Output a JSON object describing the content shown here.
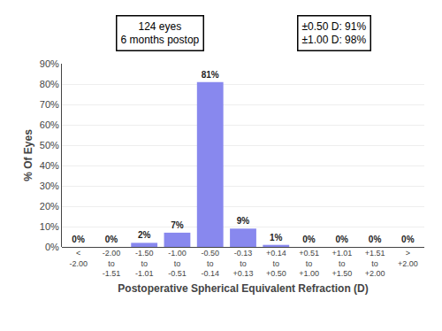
{
  "chart_data": {
    "type": "bar",
    "categories": [
      "<\n-2.00",
      "-2.00\nto\n-1.51",
      "-1.50\nto\n-1.01",
      "-1.00\nto\n-0.51",
      "-0.50\nto\n-0.14",
      "-0.13\nto\n+0.13",
      "+0.14\nto\n+0.50",
      "+0.51\nto\n+1.00",
      "+1.01\nto\n+1.50",
      "+1.51\nto\n+2.00",
      ">\n+2.00"
    ],
    "values": [
      0,
      0,
      2,
      7,
      81,
      9,
      1,
      0,
      0,
      0,
      0
    ],
    "value_labels": [
      "0%",
      "0%",
      "2%",
      "7%",
      "81%",
      "9%",
      "1%",
      "0%",
      "0%",
      "0%",
      "0%"
    ],
    "data_labels": true,
    "color": "#8888ee",
    "ylabel": "% Of Eyes",
    "xlabel": "Postoperative Spherical Equivalent Refraction (D)",
    "ylim": [
      0,
      90
    ],
    "yticks": [
      {
        "value": 0,
        "label": "0%"
      },
      {
        "value": 10,
        "label": "10%"
      },
      {
        "value": 20,
        "label": "20%"
      },
      {
        "value": 30,
        "label": "30%"
      },
      {
        "value": 40,
        "label": "40%"
      },
      {
        "value": 50,
        "label": "50%"
      },
      {
        "value": 60,
        "label": "60%"
      },
      {
        "value": 70,
        "label": "70%"
      },
      {
        "value": 80,
        "label": "80%"
      },
      {
        "value": 90,
        "label": "90%"
      }
    ],
    "annotations": [
      "124 eyes\n6 months postop",
      "±0.50 D: 91%\n±1.00 D: 98%"
    ],
    "grid": true
  }
}
